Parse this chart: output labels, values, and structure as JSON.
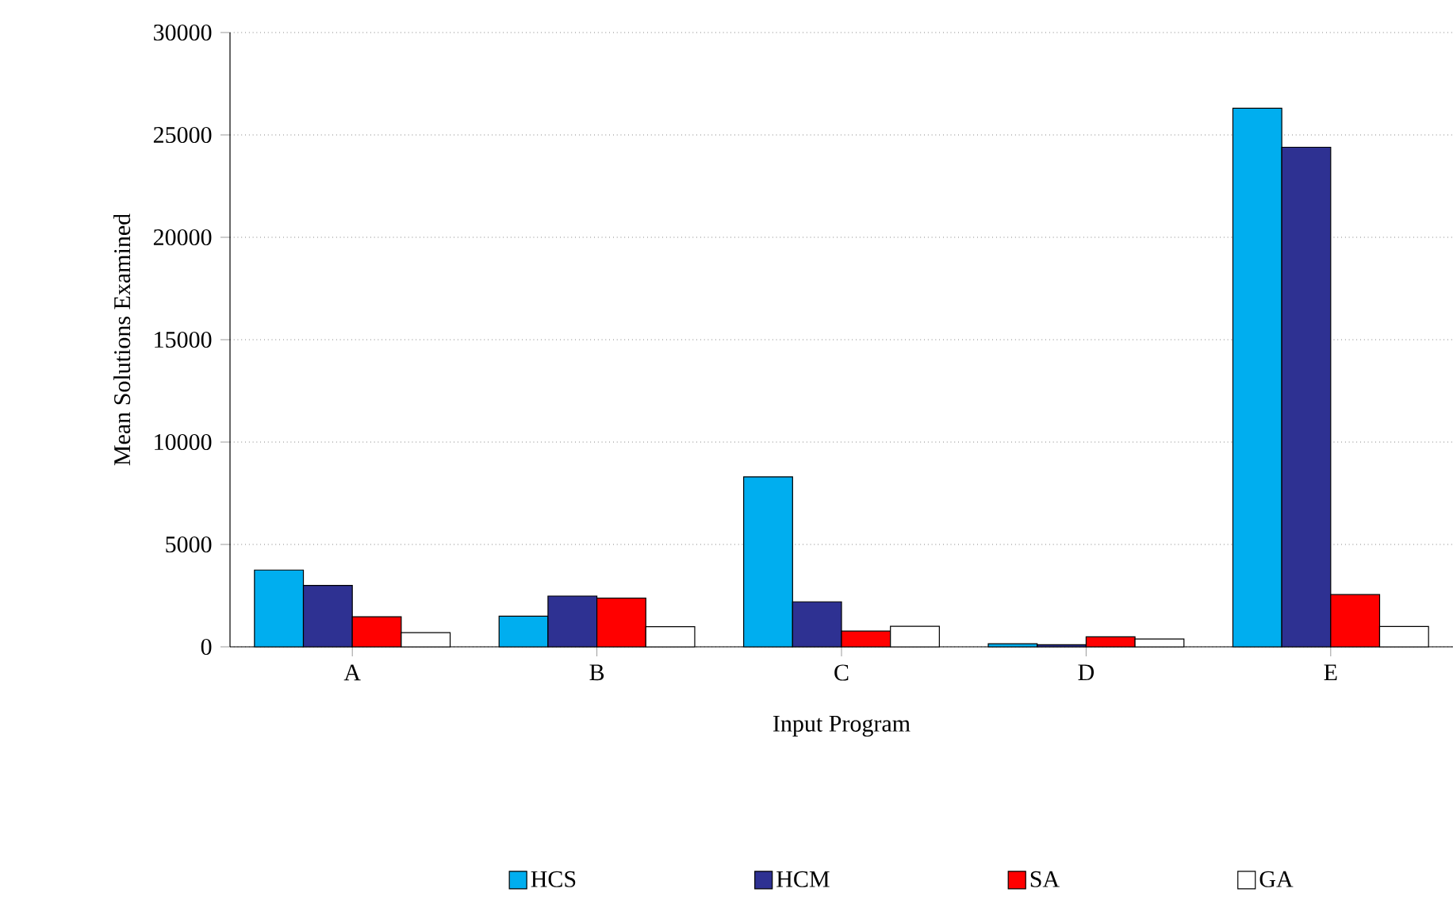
{
  "chart_data": {
    "type": "bar",
    "xlabel": "Input Program",
    "ylabel": "Mean Solutions Examined",
    "categories": [
      "A",
      "B",
      "C",
      "D",
      "E"
    ],
    "series": [
      {
        "name": "HCS",
        "color": "#00aeef",
        "values": [
          3750,
          1500,
          8300,
          150,
          26300
        ]
      },
      {
        "name": "HCM",
        "color": "#2e3192",
        "values": [
          3000,
          2480,
          2200,
          100,
          24400
        ]
      },
      {
        "name": "SA",
        "color": "#ff0000",
        "values": [
          1470,
          2380,
          770,
          490,
          2550
        ]
      },
      {
        "name": "GA",
        "color": "#ffffff",
        "values": [
          690,
          980,
          1000,
          380,
          990
        ]
      }
    ],
    "ylim": [
      0,
      30000
    ],
    "yticks": [
      0,
      5000,
      10000,
      15000,
      20000,
      25000,
      30000
    ],
    "grid": "y",
    "legend": "bottom"
  }
}
